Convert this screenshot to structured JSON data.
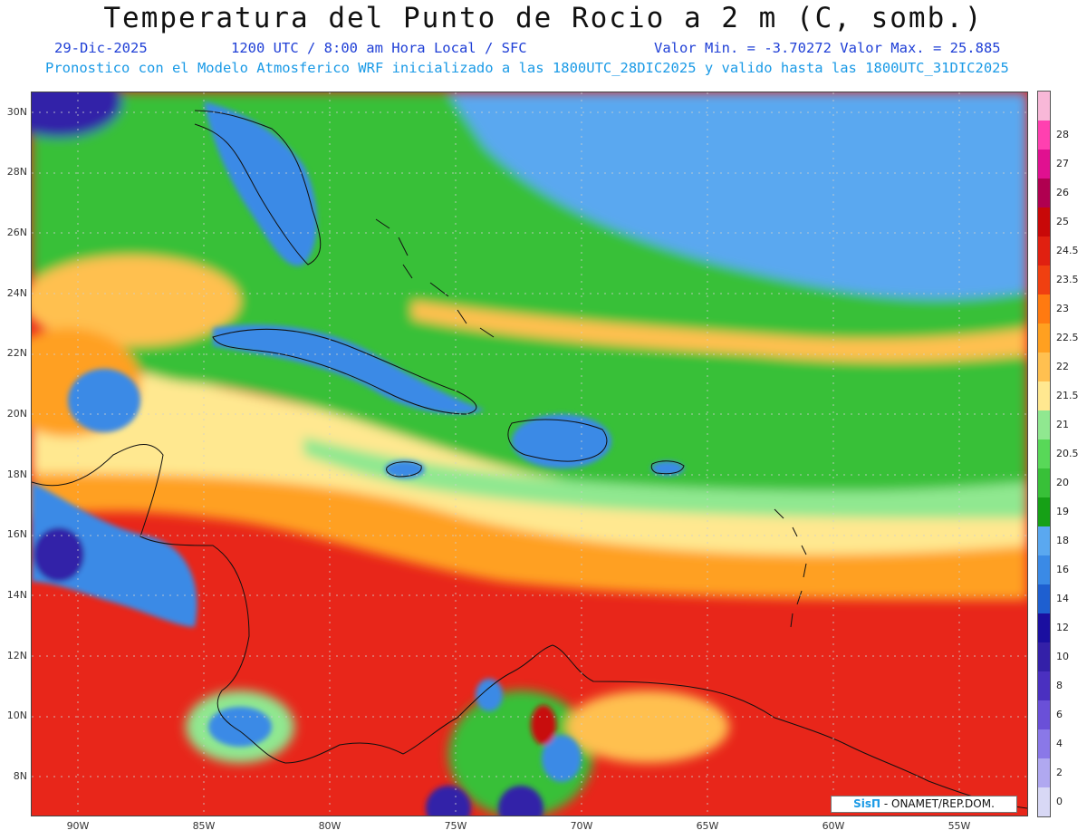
{
  "header": {
    "title": "Temperatura del Punto de Rocio a 2 m (C, somb.)",
    "date": "29-Dic-2025",
    "time_info": "1200 UTC / 8:00 am Hora Local / SFC",
    "min_max": "Valor Min. = -3.70272  Valor Max. = 25.885",
    "model_info": "Pronostico con el Modelo Atmosferico WRF inicializado a las 1800UTC_28DIC2025 y valido hasta las  1800UTC_31DIC2025"
  },
  "axes": {
    "lat_labels": [
      "30N",
      "28N",
      "26N",
      "24N",
      "22N",
      "20N",
      "18N",
      "16N",
      "14N",
      "12N",
      "10N",
      "8N"
    ],
    "lon_labels": [
      "90W",
      "85W",
      "80W",
      "75W",
      "70W",
      "65W",
      "60W",
      "55W"
    ]
  },
  "colorbar": {
    "levels": [
      "0",
      "2",
      "4",
      "6",
      "8",
      "10",
      "12",
      "14",
      "16",
      "18",
      "19",
      "20",
      "20.5",
      "21",
      "21.5",
      "22",
      "22.5",
      "23",
      "23.5",
      "24.5",
      "25",
      "26",
      "27",
      "28"
    ],
    "colors": [
      "#d8d8f5",
      "#b0a8f0",
      "#8a78e8",
      "#6a50d8",
      "#4a30c0",
      "#3320a8",
      "#1a0fa0",
      "#1e5fd0",
      "#3a8ae6",
      "#5aa8f0",
      "#16a016",
      "#38c038",
      "#58d858",
      "#90e890",
      "#ffe890",
      "#ffc050",
      "#ffa020",
      "#ff7a10",
      "#f04010",
      "#e02010",
      "#c80808",
      "#b00050",
      "#e01090",
      "#ff40b0",
      "#f8b8d8"
    ]
  },
  "credit": {
    "logo": "SisΠ",
    "text": " - ONAMET/REP.DOM."
  }
}
